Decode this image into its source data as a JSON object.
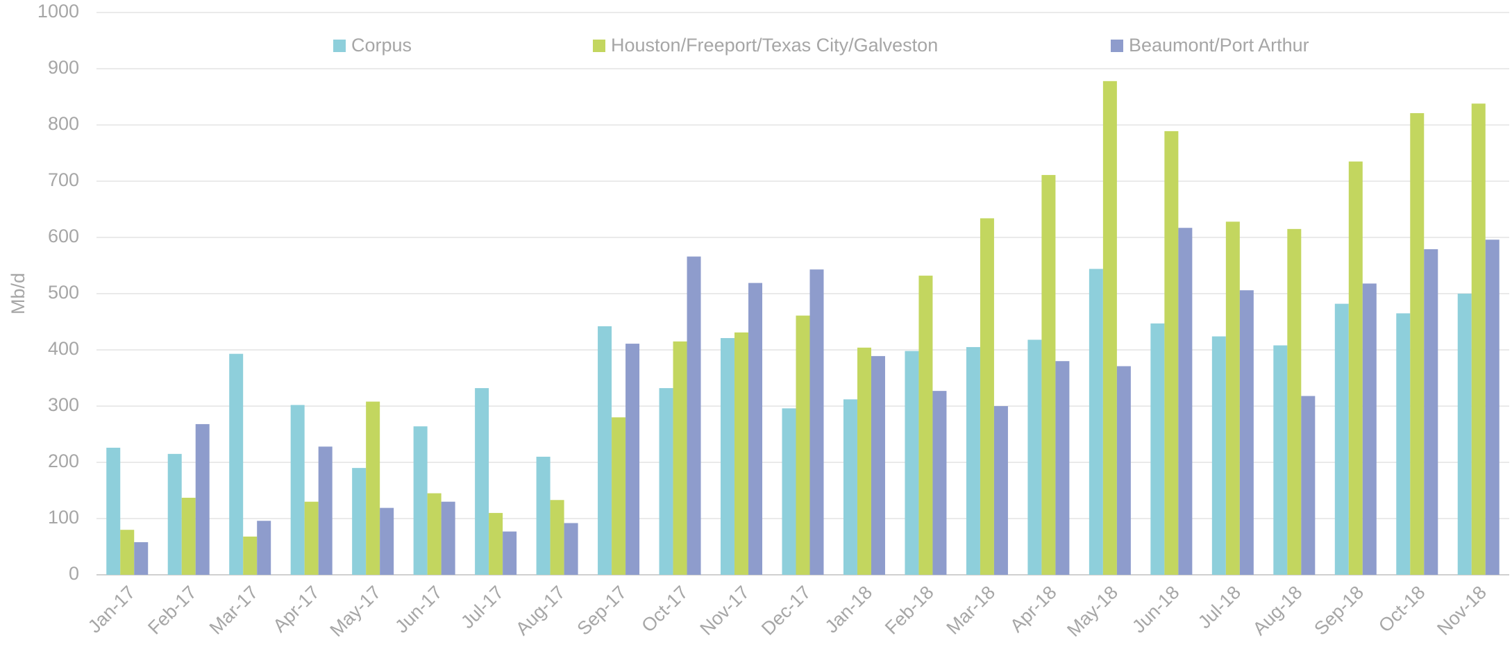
{
  "chart_data": {
    "type": "bar",
    "y_label": "Mb/d",
    "categories": [
      "Jan-17",
      "Feb-17",
      "Mar-17",
      "Apr-17",
      "May-17",
      "Jun-17",
      "Jul-17",
      "Aug-17",
      "Sep-17",
      "Oct-17",
      "Nov-17",
      "Dec-17",
      "Jan-18",
      "Feb-18",
      "Mar-18",
      "Apr-18",
      "May-18",
      "Jun-18",
      "Jul-18",
      "Aug-18",
      "Sep-18",
      "Oct-18",
      "Nov-18"
    ],
    "series": [
      {
        "name": "Corpus",
        "color": "#8ecfdb",
        "values": [
          226,
          215,
          393,
          302,
          190,
          264,
          332,
          210,
          442,
          332,
          421,
          296,
          312,
          398,
          405,
          418,
          544,
          447,
          424,
          408,
          482,
          465,
          500
        ]
      },
      {
        "name": "Houston/Freeport/Texas City/Galveston",
        "color": "#c3d65f",
        "values": [
          80,
          137,
          68,
          130,
          308,
          145,
          110,
          133,
          280,
          415,
          431,
          461,
          404,
          532,
          634,
          711,
          878,
          789,
          628,
          615,
          735,
          821,
          838
        ]
      },
      {
        "name": "Beaumont/Port Arthur",
        "color": "#8e9ccc",
        "values": [
          58,
          268,
          96,
          228,
          119,
          130,
          77,
          92,
          411,
          566,
          519,
          543,
          389,
          327,
          300,
          380,
          371,
          617,
          506,
          318,
          518,
          579,
          596
        ]
      }
    ],
    "ylim": [
      0,
      1000
    ],
    "yticks": [
      0,
      100,
      200,
      300,
      400,
      500,
      600,
      700,
      800,
      900,
      1000
    ],
    "grid": true,
    "legend": "top"
  }
}
